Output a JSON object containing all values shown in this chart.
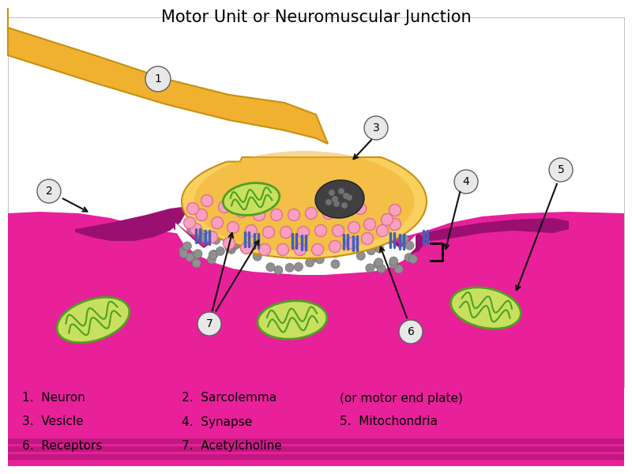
{
  "title": "Motor Unit or Neuromuscular Junction",
  "title_fontsize": 15,
  "background_color": "#ffffff",
  "fig_width": 8.0,
  "fig_height": 6.0,
  "legend_lines": [
    [
      "1.  Neuron",
      "2.  Sarcolemma",
      "(or motor end plate)"
    ],
    [
      "3.  Vesicle",
      "4.  Synapse",
      "5.  Mitochondria"
    ],
    [
      "6.  Receptors",
      "7.  Acetylcholine",
      ""
    ]
  ],
  "neuron_color": "#F0B030",
  "neuron_edge": "#C89010",
  "neuron_light": "#F8D060",
  "muscle_color": "#E8209A",
  "muscle_dark": "#9A1070",
  "muscle_stripe": "#C01880",
  "synapse_color": "#FFFFFF",
  "mito_fill": "#C8E060",
  "mito_stroke": "#50A020",
  "vesicle_fill": "#F8A0C0",
  "vesicle_stroke": "#E07090",
  "ach_gray": "#909090",
  "receptor_blue": "#4060BB",
  "label_circle_fill": "#E8E8E8",
  "label_circle_stroke": "#606060",
  "arrow_color": "#111111",
  "nucleus_fill": "#404040",
  "nucleus_dot": "#707070"
}
